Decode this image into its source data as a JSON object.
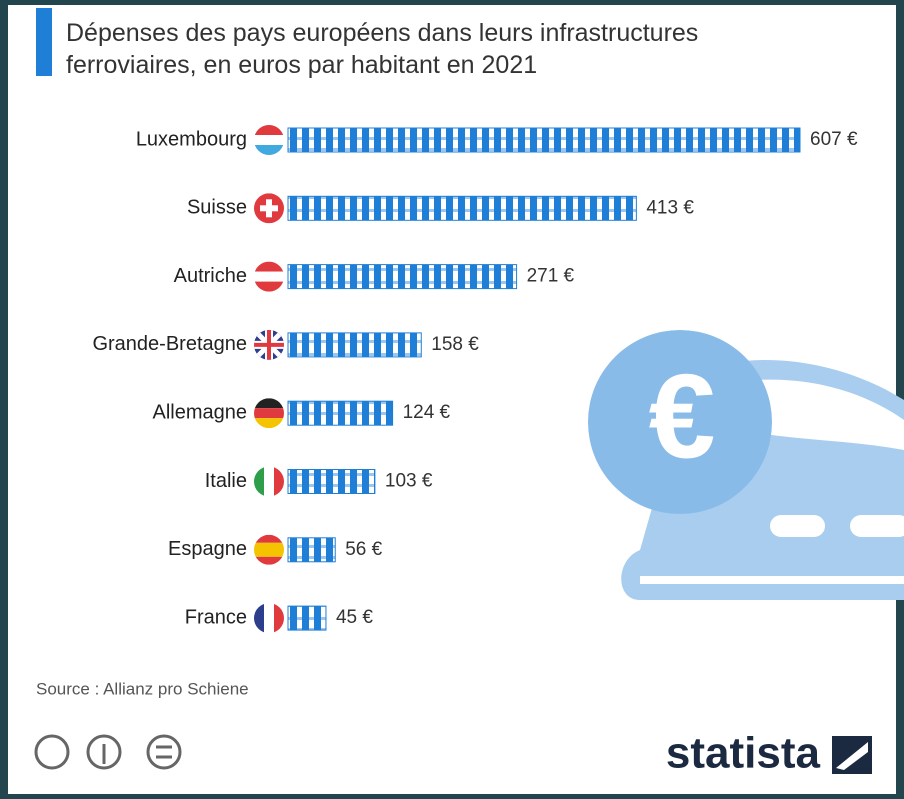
{
  "chart_data": {
    "type": "bar",
    "title": "Dépenses des pays européens dans leurs infrastructures ferroviaires, en euros par habitant en 2021",
    "categories": [
      "Luxembourg",
      "Suisse",
      "Autriche",
      "Grande-Bretagne",
      "Allemagne",
      "Italie",
      "Espagne",
      "France"
    ],
    "values": [
      607,
      413,
      271,
      158,
      124,
      103,
      56,
      45
    ],
    "value_labels": [
      "607 €",
      "413 €",
      "271 €",
      "158 €",
      "124 €",
      "103 €",
      "56 €",
      "45 €"
    ],
    "color": "#1f7fd6",
    "source": "Source : Allianz pro Schiene",
    "brand": "statista"
  }
}
